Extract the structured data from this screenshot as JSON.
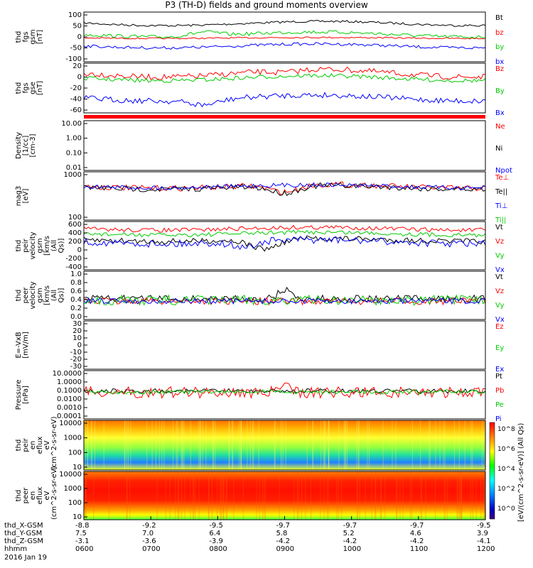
{
  "title": "P3 (TH-D) fields and ground moments overview",
  "date_label": "2016 Jan 19",
  "time_ticks": [
    "0600",
    "0700",
    "0800",
    "0900",
    "1000",
    "1100",
    "1200"
  ],
  "ephemeris": {
    "labels": [
      "thd_X-GSM",
      "thd_Y-GSM",
      "thd_Z-GSM",
      "hhmm"
    ],
    "x": [
      "-8.8",
      "-9.2",
      "-9.5",
      "-9.7",
      "-9.7",
      "-9.7",
      "-9.5"
    ],
    "y": [
      "7.5",
      "7.0",
      "6.4",
      "5.8",
      "5.2",
      "4.6",
      "3.9"
    ],
    "z": [
      "-3.1",
      "-3.6",
      "-3.9",
      "-4.2",
      "-4.2",
      "-4.2",
      "-4.1"
    ]
  },
  "colorbar_label": "[eV/(cm^2-s-sr-eV)] (All Qs)",
  "colorbar_ticks": [
    "10^0",
    "10^2",
    "10^4",
    "10^6",
    "10^8"
  ],
  "colors": {
    "black": "#000000",
    "red": "#ff0000",
    "green": "#00ff00",
    "blue": "#0000ff"
  },
  "chart_data": [
    {
      "type": "line",
      "ylabel": "thd fgs gsm [nT]",
      "yticks": [
        "100",
        "50",
        "0",
        "-50",
        "-100"
      ],
      "legend": [
        "Bt",
        "bz",
        "by",
        "bx"
      ]
    },
    {
      "type": "line",
      "ylabel": "thd fgs gse [nT]",
      "yticks": [
        "20",
        "0",
        "-20",
        "-40",
        "-60"
      ],
      "legend": [
        "Bz",
        "By",
        "Bx"
      ]
    },
    {
      "type": "line",
      "ylabel": "Density [1/cc] [cm-3]",
      "yticks": [
        "10.00",
        "1.00",
        "0.10",
        "0.01"
      ],
      "legend": [
        "Ne",
        "Ni",
        "Npot"
      ]
    },
    {
      "type": "line",
      "ylabel": "mag3 [eV]",
      "yticks": [
        "1000",
        "100"
      ],
      "legend": [
        "Te⊥",
        "Te||",
        "Ti⊥",
        "Ti||"
      ]
    },
    {
      "type": "line",
      "ylabel": "thd peir velocity gsm [km/s (All Qs)]",
      "yticks": [
        "600",
        "400",
        "200",
        "0",
        "-200",
        "-400"
      ],
      "legend": [
        "Vt",
        "Vz",
        "Vy",
        "Vx"
      ]
    },
    {
      "type": "line",
      "ylabel": "thd peer velocity gsm [km/s (All Qs)]",
      "yticks": [
        "1.0",
        "0.8",
        "0.6",
        "0.4",
        "0.2",
        "0.0"
      ],
      "legend": [
        "Vt",
        "Vz",
        "Vy",
        "Vx"
      ]
    },
    {
      "type": "line",
      "ylabel": "E=-VxB [mV/m]",
      "yticks": [
        "30",
        "20",
        "10",
        "0",
        "-10",
        "-20",
        "-30"
      ],
      "legend": [
        "Ez",
        "Ey",
        "Ex"
      ]
    },
    {
      "type": "line",
      "ylabel": "Pressure [nPa]",
      "yticks": [
        "10.0000",
        "1.0000",
        "0.1000",
        "0.0100",
        "0.0010",
        "0.0001"
      ],
      "legend": [
        "Pt",
        "Pb",
        "Pe",
        "Pi"
      ]
    },
    {
      "type": "heatmap",
      "ylabel": "thd peir en eflux eV (cm^2-s-sr-eV)",
      "yticks": [
        "10000",
        "1000",
        "100",
        "10"
      ]
    },
    {
      "type": "heatmap",
      "ylabel": "thd peer en eflux eV (cm^2-s-sr-eV)",
      "yticks": [
        "10000",
        "1000",
        "100",
        "10"
      ]
    }
  ]
}
